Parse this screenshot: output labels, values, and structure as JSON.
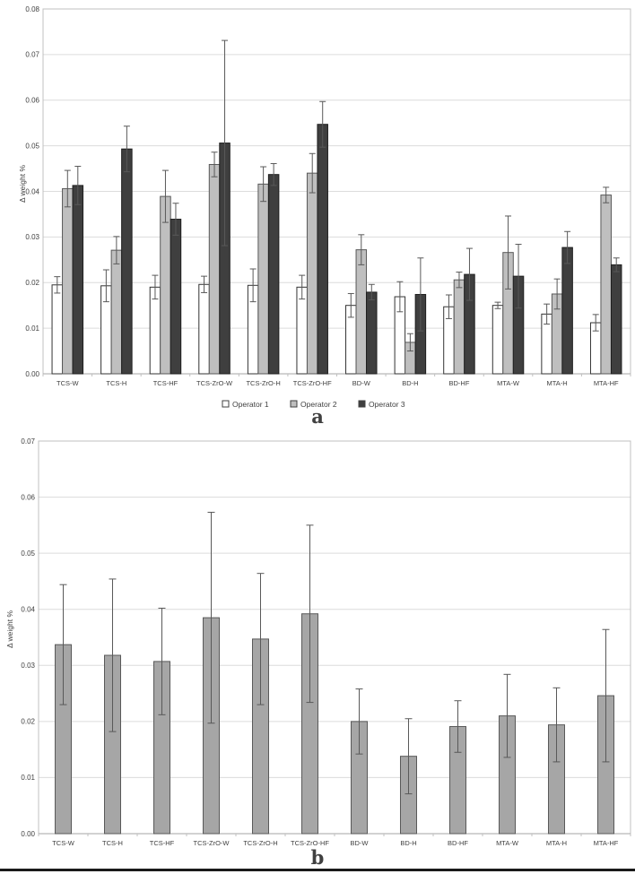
{
  "figure": {
    "panel_a_label": "a",
    "panel_b_label": "b"
  },
  "colors": {
    "background": "#ffffff",
    "gridline": "#dcdcdc",
    "plot_border": "#c0c0c0",
    "axis_line": "#a6a6a6",
    "error_bar": "#595959",
    "text": "#404040",
    "operator1_fill": "#ffffff",
    "operator2_fill": "#bfbfbf",
    "operator3_fill": "#3f3f3f",
    "panel_b_bar_fill": "#a6a6a6"
  },
  "chart_data": [
    {
      "id": "a",
      "type": "bar",
      "title": "",
      "xlabel": "",
      "ylabel": "Δ weight %",
      "ylim": [
        0,
        0.08
      ],
      "ytick_step": 0.01,
      "ytick_labels": [
        "0.00",
        "0.01",
        "0.02",
        "0.03",
        "0.04",
        "0.05",
        "0.06",
        "0.07",
        "0.08"
      ],
      "grid": true,
      "legend_position": "bottom",
      "categories": [
        "TCS-W",
        "TCS-H",
        "TCS-HF",
        "TCS-ZrO-W",
        "TCS-ZrO-H",
        "TCS-ZrO-HF",
        "BD-W",
        "BD-H",
        "BD-HF",
        "MTA-W",
        "MTA-H",
        "MTA-HF"
      ],
      "series": [
        {
          "name": "Operator 1",
          "fill": "#ffffff",
          "stroke": "#333333",
          "values": [
            0.0195,
            0.0193,
            0.019,
            0.0196,
            0.0194,
            0.019,
            0.015,
            0.0169,
            0.0147,
            0.015,
            0.0131,
            0.0112
          ],
          "errors": [
            0.0018,
            0.0035,
            0.0026,
            0.0018,
            0.0036,
            0.0026,
            0.0026,
            0.0033,
            0.0026,
            0.0007,
            0.0022,
            0.0018
          ]
        },
        {
          "name": "Operator 2",
          "fill": "#bfbfbf",
          "stroke": "#595959",
          "values": [
            0.0406,
            0.0271,
            0.0389,
            0.0459,
            0.0416,
            0.044,
            0.0272,
            0.0069,
            0.0206,
            0.0266,
            0.0175,
            0.0392
          ],
          "errors": [
            0.004,
            0.003,
            0.0057,
            0.0027,
            0.0038,
            0.0043,
            0.0033,
            0.0019,
            0.0017,
            0.008,
            0.0033,
            0.0017
          ]
        },
        {
          "name": "Operator 3",
          "fill": "#3f3f3f",
          "stroke": "#1f1f1f",
          "values": [
            0.0413,
            0.0493,
            0.0339,
            0.0506,
            0.0437,
            0.0547,
            0.0179,
            0.0174,
            0.0218,
            0.0214,
            0.0277,
            0.0239
          ],
          "errors": [
            0.0042,
            0.005,
            0.0035,
            0.0225,
            0.0024,
            0.005,
            0.0017,
            0.008,
            0.0057,
            0.007,
            0.0035,
            0.0015
          ]
        }
      ]
    },
    {
      "id": "b",
      "type": "bar",
      "title": "",
      "xlabel": "",
      "ylabel": "Δ weight %",
      "ylim": [
        0,
        0.07
      ],
      "ytick_step": 0.01,
      "ytick_labels": [
        "0.00",
        "0.01",
        "0.02",
        "0.03",
        "0.04",
        "0.05",
        "0.06",
        "0.07"
      ],
      "grid": true,
      "legend_position": "none",
      "categories": [
        "TCS-W",
        "TCS-H",
        "TCS-HF",
        "TCS-ZrO-W",
        "TCS-ZrO-H",
        "TCS-ZrO-HF",
        "BD-W",
        "BD-H",
        "BD-HF",
        "MTA-W",
        "MTA-H",
        "MTA-HF"
      ],
      "series": [
        {
          "name": "",
          "fill": "#a6a6a6",
          "stroke": "#595959",
          "values": [
            0.0337,
            0.0318,
            0.0307,
            0.0385,
            0.0347,
            0.0392,
            0.02,
            0.0138,
            0.0191,
            0.021,
            0.0194,
            0.0246
          ],
          "errors": [
            0.0107,
            0.0136,
            0.0095,
            0.0188,
            0.0117,
            0.0158,
            0.0058,
            0.0067,
            0.0046,
            0.0074,
            0.0066,
            0.0118
          ]
        }
      ]
    }
  ]
}
